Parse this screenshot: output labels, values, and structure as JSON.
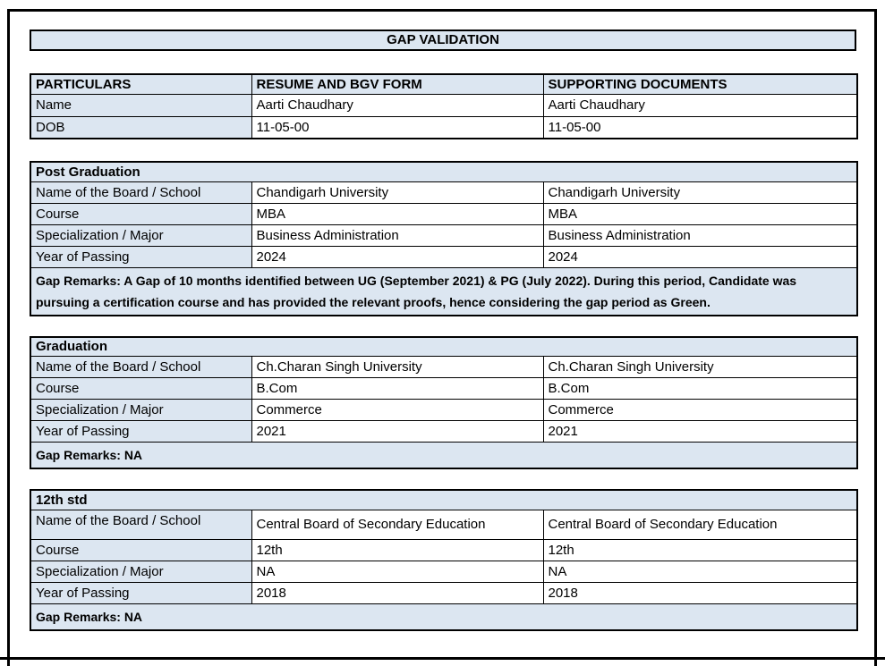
{
  "page": {
    "title": "GAP VALIDATION"
  },
  "colors": {
    "fill": "#DCE6F1",
    "border": "#000000",
    "text": "#000000",
    "background": "#FFFFFF"
  },
  "particulars_table": {
    "headers": [
      "PARTICULARS",
      "RESUME AND BGV FORM",
      "SUPPORTING DOCUMENTS"
    ],
    "rows": [
      {
        "label": "Name",
        "resume": "Aarti Chaudhary",
        "supporting": "Aarti Chaudhary"
      },
      {
        "label": "DOB",
        "resume": "11-05-00",
        "supporting": "11-05-00"
      }
    ]
  },
  "sections": [
    {
      "title": "Post Graduation",
      "rows": [
        {
          "label": "Name of the Board / School",
          "resume": "Chandigarh University",
          "supporting": "Chandigarh University"
        },
        {
          "label": "Course",
          "resume": "MBA",
          "supporting": "MBA"
        },
        {
          "label": "Specialization / Major",
          "resume": "Business Administration",
          "supporting": "Business Administration"
        },
        {
          "label": "Year of Passing",
          "resume": "2024",
          "supporting": "2024"
        }
      ],
      "gap_remarks": "Gap Remarks: A Gap of 10 months identified between UG (September 2021) & PG (July 2022). During this period, Candidate was pursuing a certification course and has provided the relevant proofs, hence considering the gap period as Green."
    },
    {
      "title": "Graduation",
      "rows": [
        {
          "label": "Name of the Board / School",
          "resume": "Ch.Charan Singh University",
          "supporting": "Ch.Charan Singh University"
        },
        {
          "label": "Course",
          "resume": "B.Com",
          "supporting": "B.Com"
        },
        {
          "label": "Specialization / Major",
          "resume": "Commerce",
          "supporting": "Commerce"
        },
        {
          "label": "Year of Passing",
          "resume": "2021",
          "supporting": "2021"
        }
      ],
      "gap_remarks": "Gap Remarks: NA"
    },
    {
      "title": "12th std",
      "rows": [
        {
          "label": "Name of the Board / School",
          "resume": "Central Board of Secondary Education",
          "supporting": "Central Board of Secondary Education"
        },
        {
          "label": "Course",
          "resume": "12th",
          "supporting": "12th"
        },
        {
          "label": "Specialization / Major",
          "resume": "NA",
          "supporting": "NA"
        },
        {
          "label": "Year of Passing",
          "resume": "2018",
          "supporting": "2018"
        }
      ],
      "gap_remarks": "Gap Remarks: NA"
    }
  ]
}
